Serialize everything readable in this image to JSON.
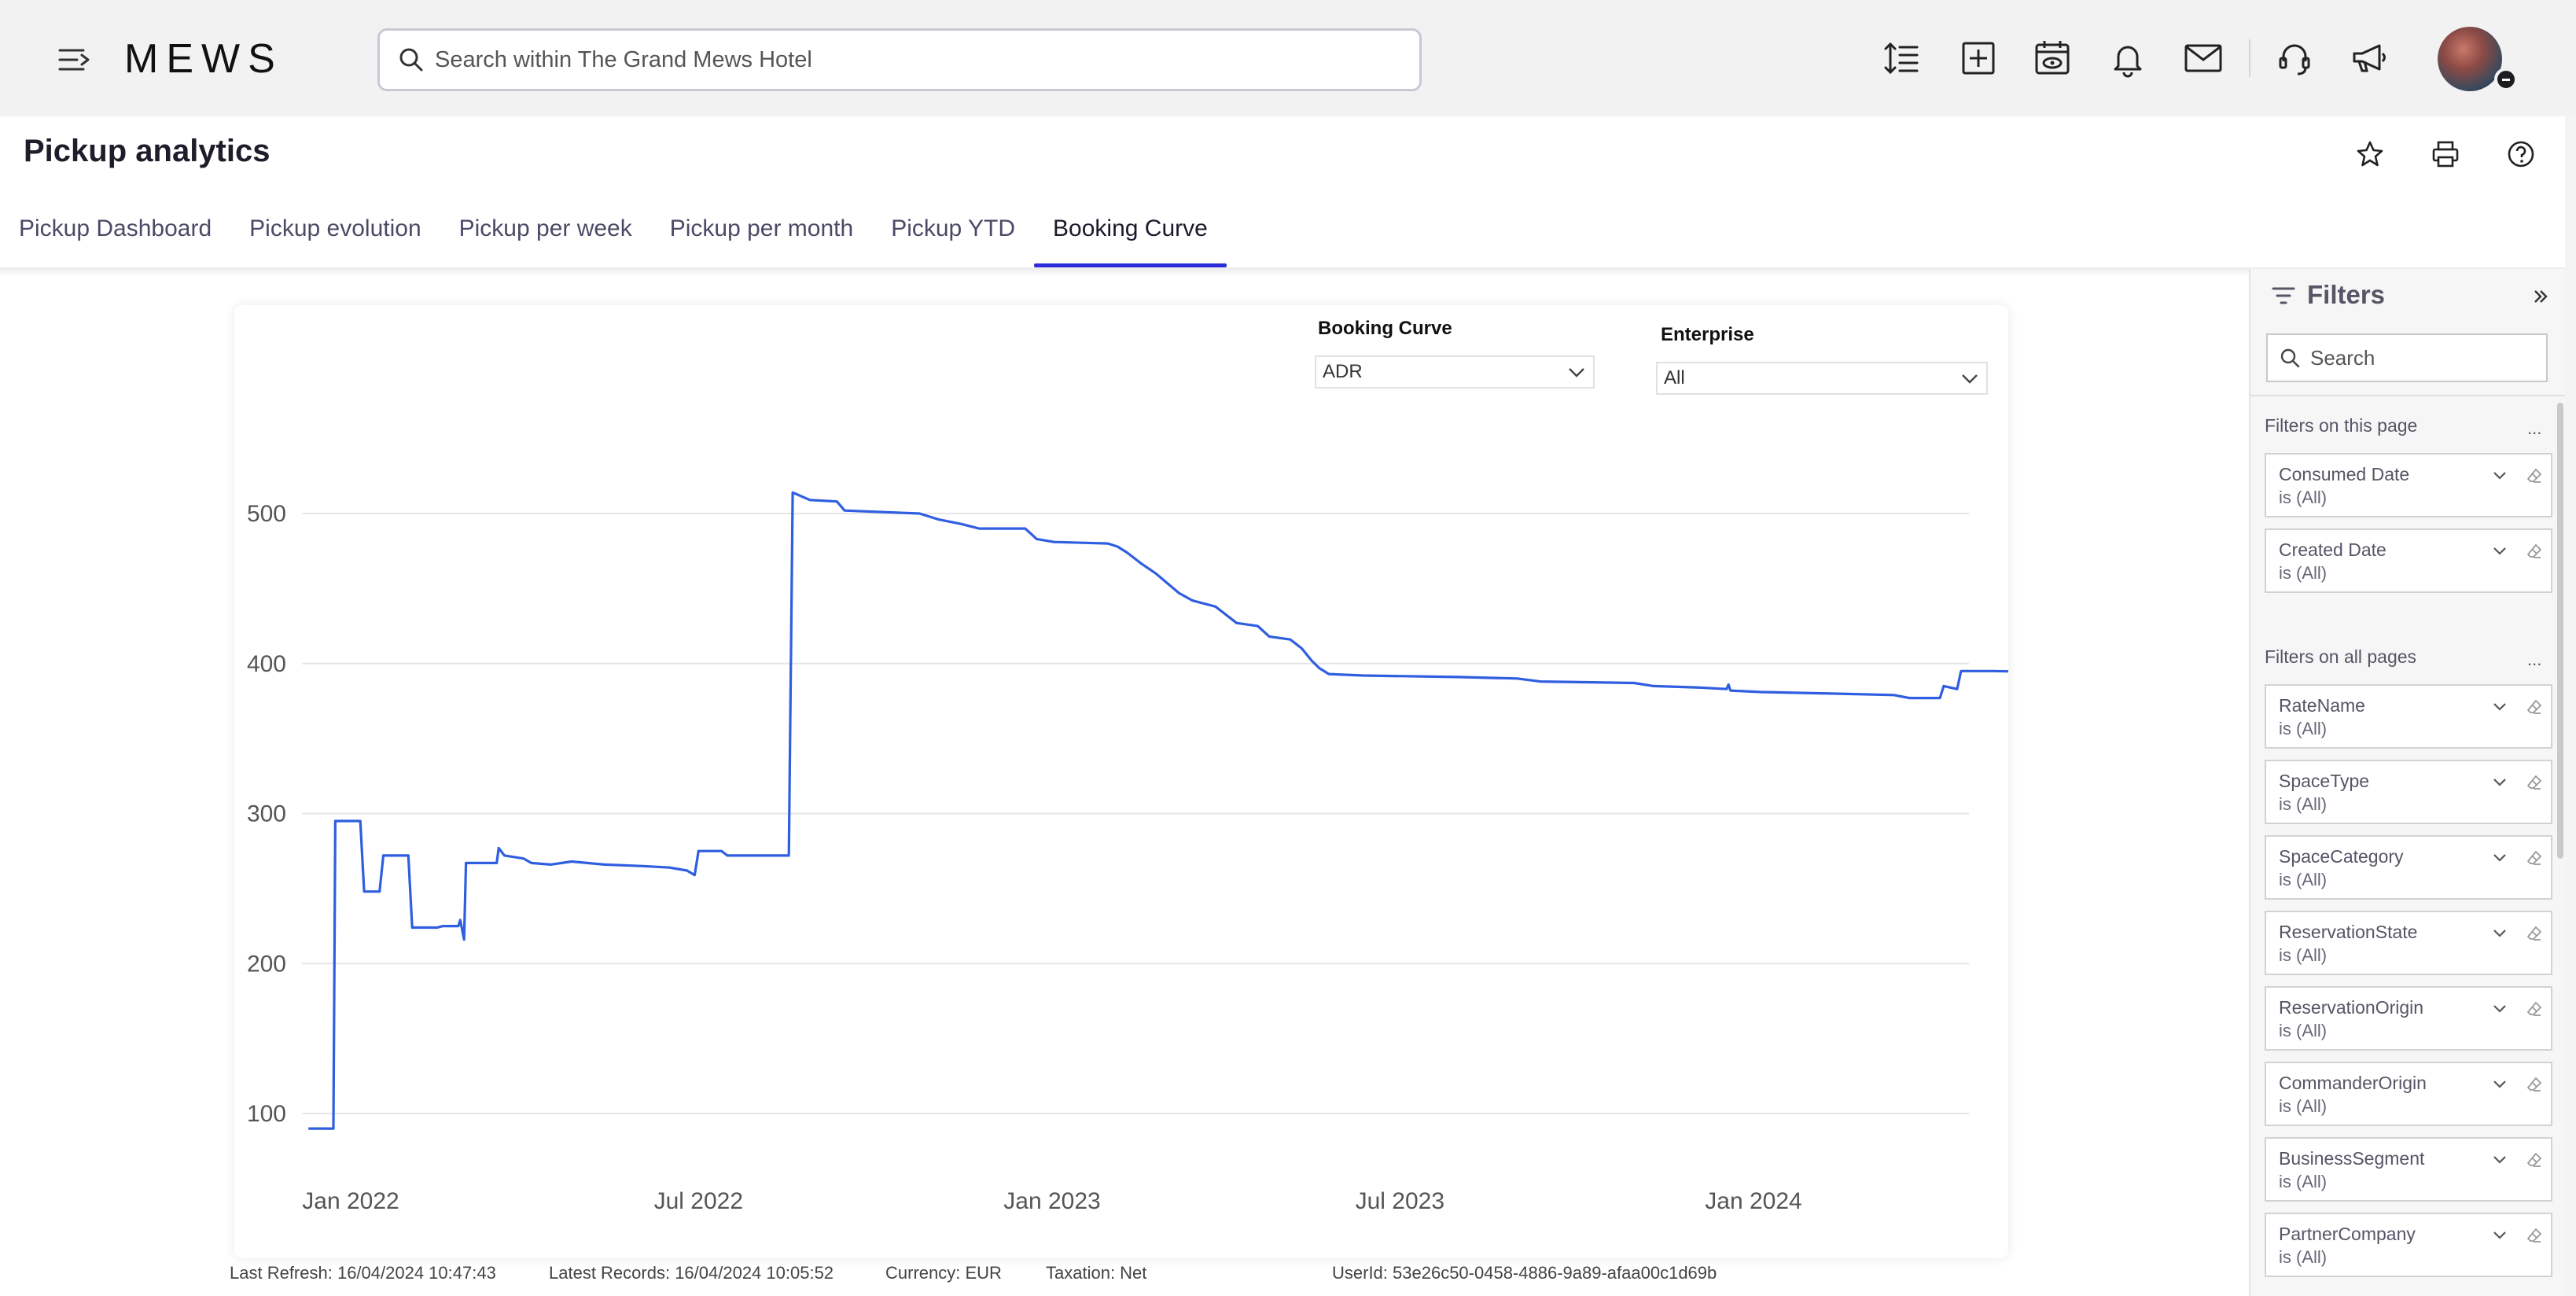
{
  "header": {
    "logo": "MEWS",
    "search_placeholder": "Search within The Grand Mews Hotel"
  },
  "page": {
    "title": "Pickup analytics"
  },
  "tabs": [
    {
      "label": "Pickup Dashboard",
      "active": false
    },
    {
      "label": "Pickup evolution",
      "active": false
    },
    {
      "label": "Pickup per week",
      "active": false
    },
    {
      "label": "Pickup per month",
      "active": false
    },
    {
      "label": "Pickup YTD",
      "active": false
    },
    {
      "label": "Booking Curve",
      "active": true
    }
  ],
  "slicers": {
    "booking_curve": {
      "label": "Booking Curve",
      "value": "ADR"
    },
    "enterprise": {
      "label": "Enterprise",
      "value": "All"
    }
  },
  "footer": {
    "last_refresh": "Last Refresh: 16/04/2024 10:47:43",
    "latest_records": "Latest Records: 16/04/2024 10:05:52",
    "currency": "Currency: EUR",
    "taxation": "Taxation: Net",
    "user_id": "UserId: 53e26c50-0458-4886-9a89-afaa00c1d69b"
  },
  "filters_pane": {
    "title": "Filters",
    "search_placeholder": "Search",
    "section_page": "Filters on this page",
    "section_all": "Filters on all pages",
    "more": "...",
    "page_filters": [
      {
        "name": "Consumed Date",
        "value": "is (All)"
      },
      {
        "name": "Created Date",
        "value": "is (All)"
      }
    ],
    "all_filters": [
      {
        "name": "RateName",
        "value": "is (All)"
      },
      {
        "name": "SpaceType",
        "value": "is (All)"
      },
      {
        "name": "SpaceCategory",
        "value": "is (All)"
      },
      {
        "name": "ReservationState",
        "value": "is (All)"
      },
      {
        "name": "ReservationOrigin",
        "value": "is (All)"
      },
      {
        "name": "CommanderOrigin",
        "value": "is (All)"
      },
      {
        "name": "BusinessSegment",
        "value": "is (All)"
      },
      {
        "name": "PartnerCompany",
        "value": "is (All)"
      }
    ]
  },
  "colors": {
    "line": "#2f5ee0",
    "tab_active": "#2c2cd9",
    "gridline": "#e6e6e6"
  },
  "chart_data": {
    "type": "line",
    "title": "",
    "xlabel": "",
    "ylabel": "",
    "x_ticks": [
      "Jan 2022",
      "Jul 2022",
      "Jan 2023",
      "Jul 2023",
      "Jan 2024"
    ],
    "y_ticks": [
      100,
      200,
      300,
      400,
      500
    ],
    "grid": true,
    "series": [
      {
        "step": true,
        "points": [
          [
            "2021-12-10",
            90
          ],
          [
            "2021-12-23",
            90
          ],
          [
            "2021-12-24",
            295
          ],
          [
            "2022-01-06",
            295
          ],
          [
            "2022-01-08",
            248
          ],
          [
            "2022-01-16",
            248
          ],
          [
            "2022-01-18",
            272
          ],
          [
            "2022-01-31",
            272
          ],
          [
            "2022-02-02",
            224
          ],
          [
            "2022-02-15",
            224
          ],
          [
            "2022-02-18",
            225
          ],
          [
            "2022-02-26",
            225
          ],
          [
            "2022-02-27",
            229
          ],
          [
            "2022-03-01",
            216
          ],
          [
            "2022-03-02",
            267
          ],
          [
            "2022-03-18",
            267
          ],
          [
            "2022-03-19",
            277
          ],
          [
            "2022-03-22",
            272
          ],
          [
            "2022-04-01",
            270
          ],
          [
            "2022-04-05",
            267
          ],
          [
            "2022-04-15",
            266
          ],
          [
            "2022-04-26",
            268
          ],
          [
            "2022-05-13",
            266
          ],
          [
            "2022-06-02",
            265
          ],
          [
            "2022-06-16",
            264
          ],
          [
            "2022-06-25",
            262
          ],
          [
            "2022-06-29",
            259
          ],
          [
            "2022-07-01",
            275
          ],
          [
            "2022-07-13",
            275
          ],
          [
            "2022-07-16",
            272
          ],
          [
            "2022-08-17",
            272
          ],
          [
            "2022-08-19",
            514
          ],
          [
            "2022-08-28",
            509
          ],
          [
            "2022-09-11",
            508
          ],
          [
            "2022-09-15",
            502
          ],
          [
            "2022-10-24",
            500
          ],
          [
            "2022-11-03",
            496
          ],
          [
            "2022-11-15",
            493
          ],
          [
            "2022-11-24",
            490
          ],
          [
            "2022-12-18",
            490
          ],
          [
            "2022-12-24",
            483
          ],
          [
            "2023-01-02",
            481
          ],
          [
            "2023-01-30",
            480
          ],
          [
            "2023-02-04",
            478
          ],
          [
            "2023-02-09",
            474
          ],
          [
            "2023-02-16",
            467
          ],
          [
            "2023-02-24",
            460
          ],
          [
            "2023-03-08",
            447
          ],
          [
            "2023-03-15",
            442
          ],
          [
            "2023-03-27",
            438
          ],
          [
            "2023-03-31",
            434
          ],
          [
            "2023-04-07",
            427
          ],
          [
            "2023-04-18",
            425
          ],
          [
            "2023-04-24",
            418
          ],
          [
            "2023-05-05",
            416
          ],
          [
            "2023-05-11",
            410
          ],
          [
            "2023-05-16",
            402
          ],
          [
            "2023-05-20",
            397
          ],
          [
            "2023-05-25",
            393
          ],
          [
            "2023-06-12",
            392
          ],
          [
            "2023-07-31",
            391
          ],
          [
            "2023-08-31",
            390
          ],
          [
            "2023-09-12",
            388
          ],
          [
            "2023-10-31",
            387
          ],
          [
            "2023-11-10",
            385
          ],
          [
            "2023-12-04",
            384
          ],
          [
            "2023-12-18",
            383
          ],
          [
            "2023-12-19",
            386
          ],
          [
            "2023-12-20",
            382
          ],
          [
            "2024-01-05",
            381
          ],
          [
            "2024-02-10",
            380
          ],
          [
            "2024-03-14",
            379
          ],
          [
            "2024-03-22",
            377
          ],
          [
            "2024-04-07",
            377
          ],
          [
            "2024-04-09",
            385
          ],
          [
            "2024-04-16",
            383
          ],
          [
            "2024-04-18",
            395
          ],
          [
            "2024-05-04",
            395
          ],
          [
            "2024-06-16",
            394
          ]
        ]
      }
    ]
  }
}
